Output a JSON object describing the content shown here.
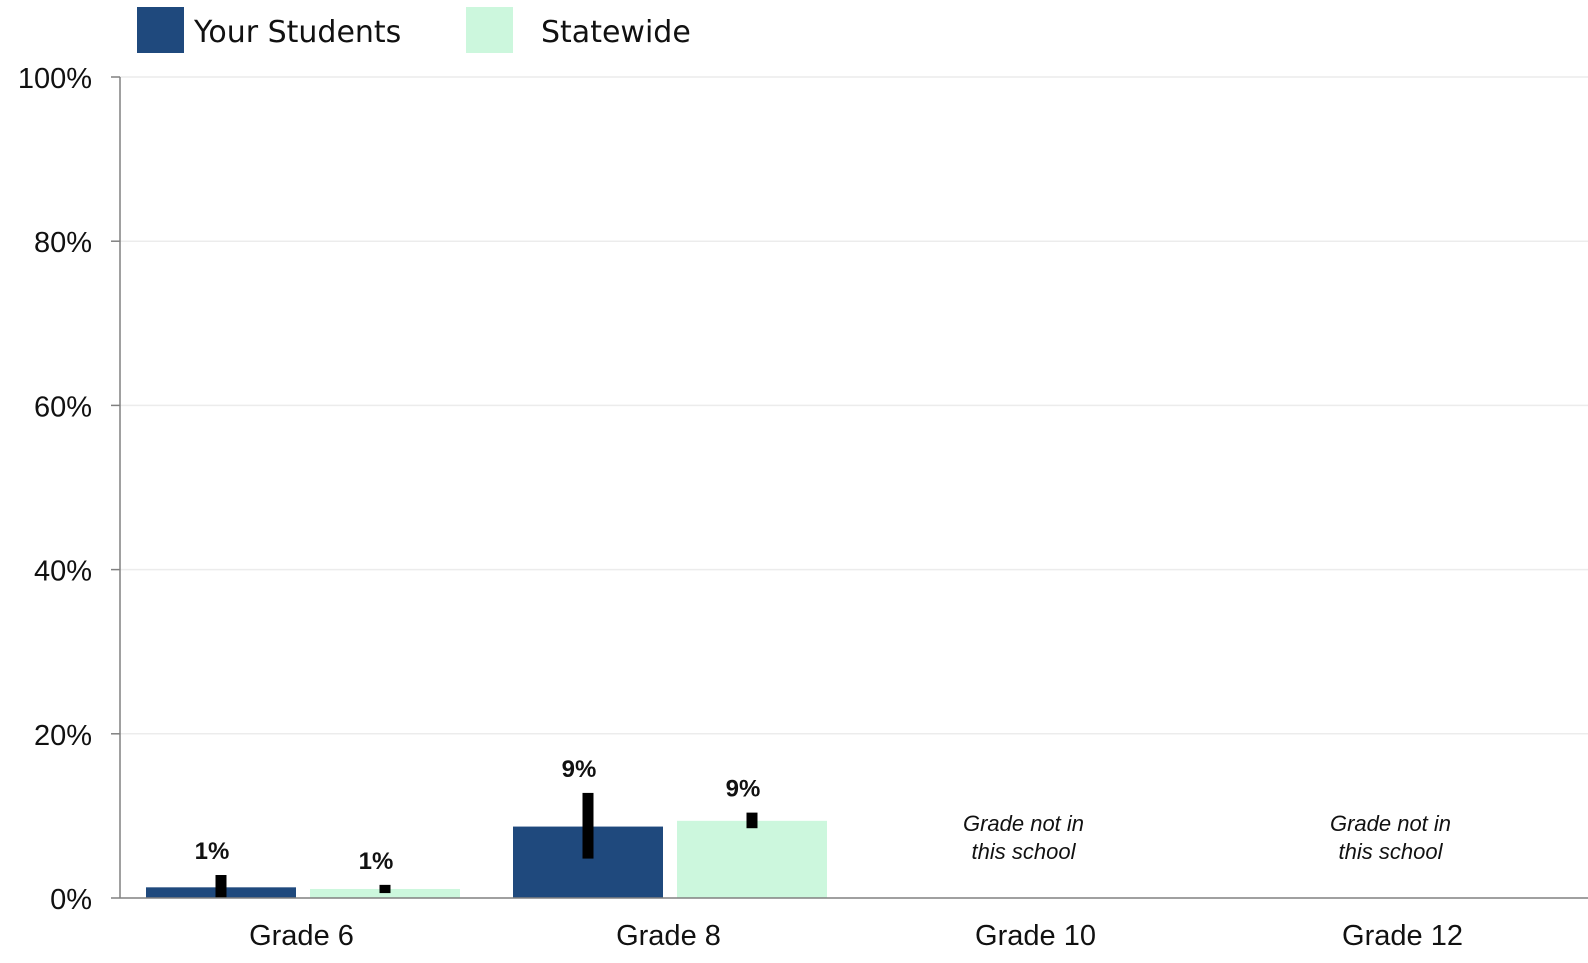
{
  "colors": {
    "your_students": "#1f497d",
    "statewide": "#ccf7dd",
    "error_bar": "#000000",
    "axis": "#808080",
    "grid": "#ececec"
  },
  "chart_data": {
    "type": "bar",
    "title": "",
    "xlabel": "",
    "ylabel": "",
    "ylim": [
      0,
      100
    ],
    "y_ticks": [
      {
        "value": 0,
        "label": "0%"
      },
      {
        "value": 20,
        "label": "20%"
      },
      {
        "value": 40,
        "label": "40%"
      },
      {
        "value": 60,
        "label": "60%"
      },
      {
        "value": 80,
        "label": "80%"
      },
      {
        "value": 100,
        "label": "100%"
      }
    ],
    "grid": true,
    "legend_position": "top-left",
    "categories": [
      "Grade 6",
      "Grade 8",
      "Grade 10",
      "Grade 12"
    ],
    "series": [
      {
        "name": "Your Students",
        "color": "#1f497d",
        "values": [
          1.3,
          8.7,
          null,
          null
        ],
        "labels": [
          "1%",
          "9%",
          "",
          ""
        ],
        "error_low": [
          0,
          4.8,
          null,
          null
        ],
        "error_high": [
          2.8,
          12.8,
          null,
          null
        ]
      },
      {
        "name": "Statewide",
        "color": "#ccf7dd",
        "values": [
          1.1,
          9.4,
          null,
          null
        ],
        "labels": [
          "1%",
          "9%",
          "",
          ""
        ],
        "error_low": [
          0.6,
          8.5,
          null,
          null
        ],
        "error_high": [
          1.6,
          10.4,
          null,
          null
        ]
      }
    ],
    "annotations": [
      {
        "category": "Grade 10",
        "lines": [
          "Grade not in",
          "this school"
        ]
      },
      {
        "category": "Grade 12",
        "lines": [
          "Grade not in",
          "this school"
        ]
      }
    ]
  }
}
